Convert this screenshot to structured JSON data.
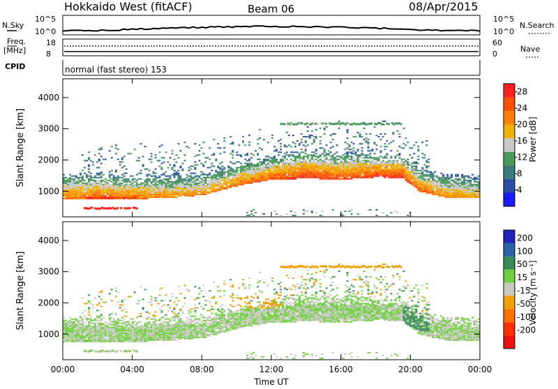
{
  "header": {
    "station": "Hokkaido West (fitACF)",
    "beam": "Beam 06",
    "date": "08/Apr/2015"
  },
  "top_panels": {
    "nsky_label": "N.Sky",
    "nsearch_label": "N.Search",
    "noise_ticks_left": [
      "10^5",
      "10^0"
    ],
    "noise_ticks_right": [
      "10^5",
      "10^0"
    ],
    "freq_label": "Freq.",
    "freq_unit": "[MHz]",
    "freq_ticks": [
      "18",
      "8"
    ],
    "nave_label": "Nave",
    "nave_ticks": [
      "60",
      "0"
    ],
    "cpid_label": "CPID",
    "cpid_text": "normal (fast stereo) 153"
  },
  "colors": {
    "power": [
      "#1a1aff",
      "#2a4ea6",
      "#3a7a7a",
      "#4a9a5a",
      "#c8c8c8",
      "#f0b000",
      "#ff8000",
      "#ff5000",
      "#ff2020"
    ],
    "velocity": [
      "#2222bb",
      "#2a64a8",
      "#3a8a5a",
      "#70d040",
      "#c8c8c0",
      "#f0a000",
      "#ff7000",
      "#ff3000",
      "#ee1010"
    ]
  },
  "chart_data": [
    {
      "type": "heatmap",
      "title": "Power",
      "xlabel": "Time UT",
      "ylabel": "Slant Range [km]",
      "x_ticks": [
        "00:00",
        "04:00",
        "08:00",
        "12:00",
        "16:00",
        "20:00",
        "00:00"
      ],
      "y_ticks": [
        1000,
        2000,
        3000,
        4000
      ],
      "xlim_hours": [
        0,
        24
      ],
      "ylim_km": [
        180,
        4600
      ],
      "colorbar": {
        "label": "Power [dB]",
        "ticks": [
          "4",
          "8",
          "12",
          "16",
          "20",
          "24",
          "28"
        ],
        "range": [
          0,
          30
        ]
      },
      "main_echo_band": {
        "hours": [
          0,
          1,
          2,
          4,
          6,
          8,
          10,
          12,
          14,
          16,
          18,
          19.5,
          20.5,
          22,
          24
        ],
        "lower_edge_km": [
          700,
          720,
          740,
          720,
          760,
          850,
          1150,
          1350,
          1380,
          1350,
          1420,
          1400,
          950,
          780,
          760
        ],
        "upper_edge_km": [
          1600,
          1580,
          1560,
          1520,
          1540,
          1600,
          1900,
          2100,
          2300,
          2250,
          2200,
          2150,
          1700,
          1550,
          1500
        ],
        "peak_power_db": [
          24,
          24,
          26,
          24,
          22,
          22,
          24,
          26,
          28,
          26,
          28,
          28,
          26,
          22,
          20
        ]
      },
      "secondary_echoes": [
        {
          "hours": [
            1.2,
            4.3
          ],
          "range_km": 450,
          "power_db": 28
        },
        {
          "hours": [
            1.3,
            4.2
          ],
          "range_km": 780,
          "power_db": 26
        },
        {
          "hours": [
            12.5,
            19.5
          ],
          "range_km": 3150,
          "power_db": 12
        }
      ]
    },
    {
      "type": "heatmap",
      "title": "Velocity",
      "xlabel": "Time UT",
      "ylabel": "Slant Range [km]",
      "x_ticks": [
        "00:00",
        "04:00",
        "08:00",
        "12:00",
        "16:00",
        "20:00",
        "00:00"
      ],
      "y_ticks": [
        1000,
        2000,
        3000,
        4000
      ],
      "xlim_hours": [
        0,
        24
      ],
      "ylim_km": [
        180,
        4600
      ],
      "colorbar": {
        "label": "Velocity [m s⁻¹]",
        "ticks": [
          "200",
          "100",
          "50",
          "15",
          "-15",
          "-50",
          "-100",
          "-200"
        ],
        "range": [
          -250,
          250
        ]
      },
      "dominant_velocity_ms": 0,
      "notable_regions": [
        {
          "hours": [
            9.5,
            12.5
          ],
          "range_km": [
            1800,
            2300
          ],
          "velocity_ms": -60
        },
        {
          "hours": [
            19.5,
            21.0
          ],
          "range_km": [
            1100,
            1900
          ],
          "velocity_ms": 60
        },
        {
          "hours": [
            12.5,
            19.5
          ],
          "range_km": [
            3150,
            3250
          ],
          "velocity_ms": -60
        }
      ]
    }
  ],
  "xaxis_title": "Time UT"
}
